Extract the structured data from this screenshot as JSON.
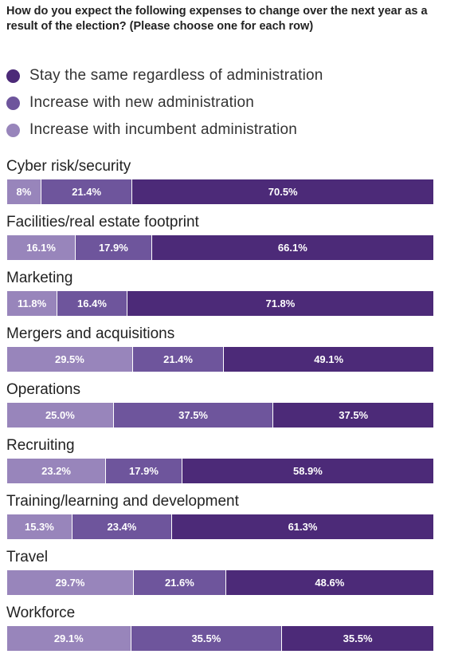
{
  "chart_data": {
    "type": "bar",
    "orientation": "horizontal",
    "stacked": true,
    "title": "How do you expect the following expenses to change over the next year as a result of the election? (Please choose one for each row)",
    "legend_position": "top-left",
    "categories": [
      "Cyber risk/security",
      "Facilities/real estate footprint",
      "Marketing",
      "Mergers and acquisitions",
      "Operations",
      "Recruiting",
      "Training/learning and development",
      "Travel",
      "Workforce"
    ],
    "series": [
      {
        "name": "Increase with incumbent administration",
        "color": "#9885bb",
        "values": [
          8,
          16.1,
          11.8,
          29.5,
          25.0,
          23.2,
          15.3,
          29.7,
          29.1
        ],
        "labels": [
          "8%",
          "16.1%",
          "11.8%",
          "29.5%",
          "25.0%",
          "23.2%",
          "15.3%",
          "29.7%",
          "29.1%"
        ]
      },
      {
        "name": "Increase with new administration",
        "color": "#6e559c",
        "values": [
          21.4,
          17.9,
          16.4,
          21.4,
          37.5,
          17.9,
          23.4,
          21.6,
          35.5
        ],
        "labels": [
          "21.4%",
          "17.9%",
          "16.4%",
          "21.4%",
          "37.5%",
          "17.9%",
          "23.4%",
          "21.6%",
          "35.5%"
        ]
      },
      {
        "name": "Stay the same regardless of administration",
        "color": "#4c2a78",
        "values": [
          70.5,
          66.1,
          71.8,
          49.1,
          37.5,
          58.9,
          61.3,
          48.6,
          35.5
        ],
        "labels": [
          "70.5%",
          "66.1%",
          "71.8%",
          "49.1%",
          "37.5%",
          "58.9%",
          "61.3%",
          "48.6%",
          "35.5%"
        ]
      }
    ],
    "legend_order": [
      2,
      1,
      0
    ]
  }
}
